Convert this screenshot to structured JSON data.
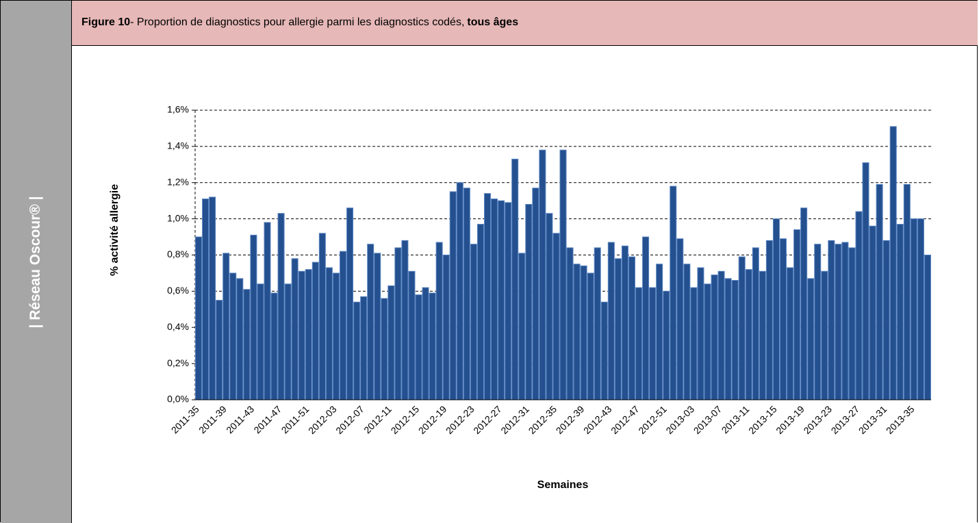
{
  "side_label": "| Réseau Oscour® |",
  "header": {
    "figure_label": "Figure 10",
    "title": "- Proportion de diagnostics pour allergie parmi les diagnostics codés,",
    "emphasis": "tous âges"
  },
  "chart_data": {
    "type": "bar",
    "y_label": "% activité allergie",
    "x_label": "Semaines",
    "categories": [
      "2011-35",
      null,
      null,
      null,
      "2011-39",
      null,
      null,
      null,
      "2011-43",
      null,
      null,
      null,
      "2011-47",
      null,
      null,
      null,
      "2011-51",
      null,
      null,
      null,
      "2012-03",
      null,
      null,
      null,
      "2012-07",
      null,
      null,
      null,
      "2012-11",
      null,
      null,
      null,
      "2012-15",
      null,
      null,
      null,
      "2012-19",
      null,
      null,
      null,
      "2012-23",
      null,
      null,
      null,
      "2012-27",
      null,
      null,
      null,
      "2012-31",
      null,
      null,
      null,
      "2012-35",
      null,
      null,
      null,
      "2012-39",
      null,
      null,
      null,
      "2012-43",
      null,
      null,
      null,
      "2012-47",
      null,
      null,
      null,
      "2012-51",
      null,
      null,
      null,
      "2013-03",
      null,
      null,
      null,
      "2013-07",
      null,
      null,
      null,
      "2013-11",
      null,
      null,
      null,
      "2013-15",
      null,
      null,
      null,
      "2013-19",
      null,
      null,
      null,
      "2013-23",
      null,
      null,
      null,
      "2013-27",
      null,
      null,
      null,
      "2013-31",
      null,
      null,
      null,
      "2013-35",
      null,
      null
    ],
    "values": [
      0.9,
      1.11,
      1.12,
      0.55,
      0.81,
      0.7,
      0.67,
      0.61,
      0.91,
      0.64,
      0.98,
      0.59,
      1.03,
      0.64,
      0.78,
      0.71,
      0.72,
      0.76,
      0.92,
      0.73,
      0.7,
      0.82,
      1.06,
      0.54,
      0.57,
      0.86,
      0.81,
      0.56,
      0.63,
      0.84,
      0.88,
      0.71,
      0.58,
      0.62,
      0.59,
      0.87,
      0.8,
      1.15,
      1.2,
      1.17,
      0.86,
      0.97,
      1.14,
      1.11,
      1.1,
      1.09,
      1.33,
      0.81,
      1.08,
      1.17,
      1.38,
      1.03,
      0.92,
      1.38,
      0.84,
      0.75,
      0.74,
      0.7,
      0.84,
      0.54,
      0.87,
      0.78,
      0.85,
      0.79,
      0.62,
      0.9,
      0.62,
      0.75,
      0.6,
      1.18,
      0.89,
      0.75,
      0.62,
      0.73,
      0.64,
      0.69,
      0.71,
      0.67,
      0.66,
      0.79,
      0.72,
      0.84,
      0.71,
      0.88,
      1.0,
      0.89,
      0.73,
      0.94,
      1.06,
      0.67,
      0.86,
      0.71,
      0.88,
      0.86,
      0.87,
      0.84,
      1.04,
      1.31,
      0.96,
      1.19,
      0.88,
      1.51,
      0.97,
      1.19,
      1.0,
      1.0,
      0.8
    ],
    "color": "#24508f",
    "ylim": [
      0,
      1.6
    ],
    "yticks": [
      {
        "value": 0,
        "label": "0,0%"
      },
      {
        "value": 0.2,
        "label": "0,2%"
      },
      {
        "value": 0.4,
        "label": "0,4%"
      },
      {
        "value": 0.6,
        "label": "0,6%"
      },
      {
        "value": 0.8,
        "label": "0,8%"
      },
      {
        "value": 1.0,
        "label": "1,0%"
      },
      {
        "value": 1.2,
        "label": "1,2%"
      },
      {
        "value": 1.4,
        "label": "1,4%"
      },
      {
        "value": 1.6,
        "label": "1,6%"
      }
    ],
    "grid": true
  }
}
